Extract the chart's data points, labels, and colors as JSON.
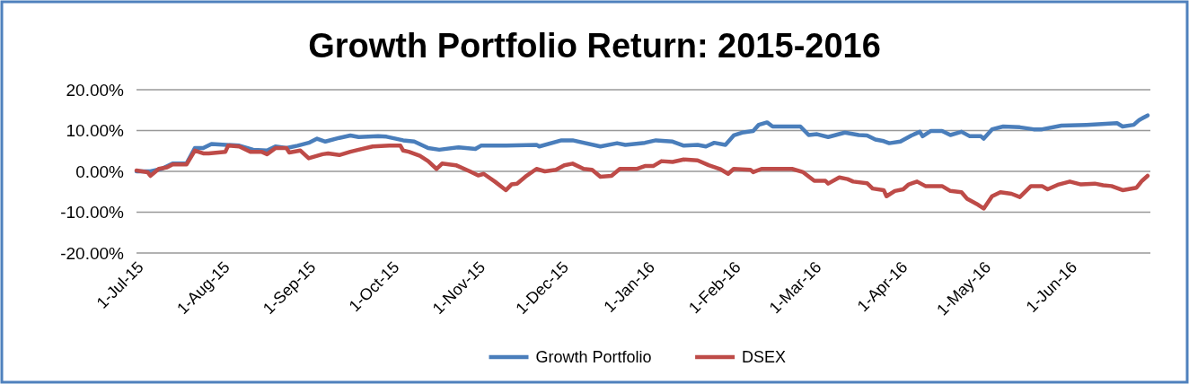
{
  "chart_data": {
    "type": "line",
    "title": "Growth Portfolio Return: 2015-2016",
    "xlim": [
      "2015-07-01",
      "2016-06-30"
    ],
    "xticks": [
      {
        "value": "2015-07-01",
        "label": "1-Jul-15"
      },
      {
        "value": "2015-08-01",
        "label": "1-Aug-15"
      },
      {
        "value": "2015-09-01",
        "label": "1-Sep-15"
      },
      {
        "value": "2015-10-01",
        "label": "1-Oct-15"
      },
      {
        "value": "2015-11-01",
        "label": "1-Nov-15"
      },
      {
        "value": "2015-12-01",
        "label": "1-Dec-15"
      },
      {
        "value": "2016-01-01",
        "label": "1-Jan-16"
      },
      {
        "value": "2016-02-01",
        "label": "1-Feb-16"
      },
      {
        "value": "2016-03-01",
        "label": "1-Mar-16"
      },
      {
        "value": "2016-04-01",
        "label": "1-Apr-16"
      },
      {
        "value": "2016-05-01",
        "label": "1-May-16"
      },
      {
        "value": "2016-06-01",
        "label": "1-Jun-16"
      }
    ],
    "ylim": [
      -20,
      20
    ],
    "yticks": [
      {
        "value": -20,
        "label": "-20.00%"
      },
      {
        "value": -10,
        "label": "-10.00%"
      },
      {
        "value": 0,
        "label": "0.00%"
      },
      {
        "value": 10,
        "label": "10.00%"
      },
      {
        "value": 20,
        "label": "20.00%"
      }
    ],
    "grid": "y",
    "legend": "bottom",
    "marker": "none",
    "line_style": "solid",
    "series": [
      {
        "name": "Growth Portfolio",
        "color": "#4a7ebb",
        "x": [
          "2015-07-01",
          "2015-07-06",
          "2015-07-10",
          "2015-07-14",
          "2015-07-19",
          "2015-07-22",
          "2015-07-25",
          "2015-07-28",
          "2015-08-07",
          "2015-08-12",
          "2015-08-17",
          "2015-08-20",
          "2015-08-24",
          "2015-08-28",
          "2015-09-01",
          "2015-09-04",
          "2015-09-07",
          "2015-09-12",
          "2015-09-16",
          "2015-09-19",
          "2015-09-26",
          "2015-09-29",
          "2015-10-05",
          "2015-10-09",
          "2015-10-14",
          "2015-10-18",
          "2015-10-25",
          "2015-10-31",
          "2015-11-02",
          "2015-11-11",
          "2015-11-22",
          "2015-11-23",
          "2015-12-01",
          "2015-12-05",
          "2015-12-15",
          "2015-12-21",
          "2015-12-24",
          "2015-12-31",
          "2016-01-04",
          "2016-01-10",
          "2016-01-14",
          "2016-01-19",
          "2016-01-22",
          "2016-01-25",
          "2016-01-29",
          "2016-02-01",
          "2016-02-04",
          "2016-02-08",
          "2016-02-10",
          "2016-02-13",
          "2016-02-15",
          "2016-02-21",
          "2016-02-25",
          "2016-02-28",
          "2016-03-02",
          "2016-03-06",
          "2016-03-12",
          "2016-03-17",
          "2016-03-20",
          "2016-03-23",
          "2016-03-26",
          "2016-03-28",
          "2016-04-01",
          "2016-04-05",
          "2016-04-08",
          "2016-04-09",
          "2016-04-12",
          "2016-04-16",
          "2016-04-19",
          "2016-04-23",
          "2016-04-26",
          "2016-04-30",
          "2016-05-01",
          "2016-05-04",
          "2016-05-08",
          "2016-05-14",
          "2016-05-19",
          "2016-05-22",
          "2016-05-29",
          "2016-06-07",
          "2016-06-18",
          "2016-06-20",
          "2016-06-24",
          "2016-06-26",
          "2016-06-29"
        ],
        "values": [
          0,
          0,
          0.6,
          1.9,
          1.9,
          5.7,
          5.7,
          6.7,
          6.3,
          5.3,
          5.1,
          6.1,
          5.7,
          6.3,
          7.0,
          8.0,
          7.3,
          8.2,
          8.8,
          8.4,
          8.6,
          8.5,
          7.6,
          7.3,
          5.7,
          5.3,
          5.9,
          5.5,
          6.3,
          6.3,
          6.5,
          6.1,
          7.6,
          7.6,
          6.1,
          6.9,
          6.5,
          7.0,
          7.6,
          7.3,
          6.3,
          6.5,
          6.1,
          7.0,
          6.5,
          8.8,
          9.5,
          9.9,
          11.4,
          12.0,
          11.0,
          11.0,
          11.0,
          8.9,
          9.1,
          8.4,
          9.5,
          8.9,
          8.8,
          7.8,
          7.4,
          6.9,
          7.3,
          8.8,
          9.7,
          8.6,
          9.9,
          9.9,
          8.9,
          9.7,
          8.6,
          8.6,
          8.0,
          10.3,
          11.0,
          10.8,
          10.3,
          10.3,
          11.2,
          11.4,
          11.8,
          11.0,
          11.4,
          12.6,
          13.7
        ]
      },
      {
        "name": "DSEX",
        "color": "#be4b48",
        "x": [
          "2015-07-01",
          "2015-07-05",
          "2015-07-06",
          "2015-07-09",
          "2015-07-12",
          "2015-07-14",
          "2015-07-19",
          "2015-07-22",
          "2015-07-25",
          "2015-07-27",
          "2015-08-02",
          "2015-08-03",
          "2015-08-07",
          "2015-08-11",
          "2015-08-15",
          "2015-08-17",
          "2015-08-20",
          "2015-08-24",
          "2015-08-25",
          "2015-08-29",
          "2015-09-01",
          "2015-09-06",
          "2015-09-08",
          "2015-09-12",
          "2015-09-16",
          "2015-09-19",
          "2015-09-24",
          "2015-09-30",
          "2015-10-04",
          "2015-10-05",
          "2015-10-07",
          "2015-10-11",
          "2015-10-14",
          "2015-10-17",
          "2015-10-19",
          "2015-10-24",
          "2015-10-29",
          "2015-11-01",
          "2015-11-03",
          "2015-11-07",
          "2015-11-11",
          "2015-11-13",
          "2015-11-15",
          "2015-11-18",
          "2015-11-22",
          "2015-11-25",
          "2015-11-29",
          "2015-12-02",
          "2015-12-05",
          "2015-12-09",
          "2015-12-12",
          "2015-12-15",
          "2015-12-19",
          "2015-12-22",
          "2015-12-28",
          "2015-12-31",
          "2016-01-03",
          "2016-01-06",
          "2016-01-10",
          "2016-01-14",
          "2016-01-19",
          "2016-01-23",
          "2016-01-27",
          "2016-01-30",
          "2016-02-01",
          "2016-02-07",
          "2016-02-08",
          "2016-02-11",
          "2016-02-22",
          "2016-02-26",
          "2016-03-01",
          "2016-03-05",
          "2016-03-06",
          "2016-03-10",
          "2016-03-13",
          "2016-03-15",
          "2016-03-20",
          "2016-03-22",
          "2016-03-26",
          "2016-03-27",
          "2016-03-30",
          "2016-04-02",
          "2016-04-04",
          "2016-04-07",
          "2016-04-10",
          "2016-04-16",
          "2016-04-19",
          "2016-04-23",
          "2016-04-25",
          "2016-04-29",
          "2016-05-01",
          "2016-05-04",
          "2016-05-07",
          "2016-05-11",
          "2016-05-14",
          "2016-05-18",
          "2016-05-22",
          "2016-05-24",
          "2016-05-28",
          "2016-06-01",
          "2016-06-05",
          "2016-06-10",
          "2016-06-13",
          "2016-06-16",
          "2016-06-20",
          "2016-06-25",
          "2016-06-27",
          "2016-06-29"
        ],
        "values": [
          0.2,
          -0.2,
          -1.1,
          0.6,
          1.0,
          1.7,
          1.7,
          5.1,
          4.4,
          4.4,
          4.8,
          6.3,
          6.1,
          4.8,
          4.8,
          4.2,
          5.7,
          5.7,
          4.6,
          5.1,
          3.2,
          4.2,
          4.4,
          4.0,
          4.8,
          5.3,
          6.1,
          6.3,
          6.3,
          5.1,
          4.8,
          3.8,
          2.5,
          0.6,
          1.9,
          1.5,
          0,
          -1.0,
          -0.6,
          -2.5,
          -4.6,
          -3.2,
          -3.0,
          -1.3,
          0.6,
          0,
          0.4,
          1.5,
          1.9,
          0.6,
          0.4,
          -1.3,
          -1.1,
          0.6,
          0.6,
          1.3,
          1.3,
          2.5,
          2.3,
          2.9,
          2.7,
          1.5,
          0.6,
          -0.6,
          0.6,
          0.4,
          -0.2,
          0.6,
          0.6,
          -0.2,
          -2.3,
          -2.3,
          -3.0,
          -1.5,
          -1.9,
          -2.5,
          -2.9,
          -4.2,
          -4.6,
          -6.1,
          -4.8,
          -4.4,
          -3.2,
          -2.5,
          -3.6,
          -3.6,
          -4.8,
          -5.1,
          -6.7,
          -8.2,
          -9.1,
          -6.1,
          -5.1,
          -5.5,
          -6.3,
          -3.6,
          -3.6,
          -4.4,
          -3.2,
          -2.5,
          -3.2,
          -3.0,
          -3.4,
          -3.6,
          -4.6,
          -4.0,
          -2.3,
          -1.1
        ]
      }
    ]
  }
}
